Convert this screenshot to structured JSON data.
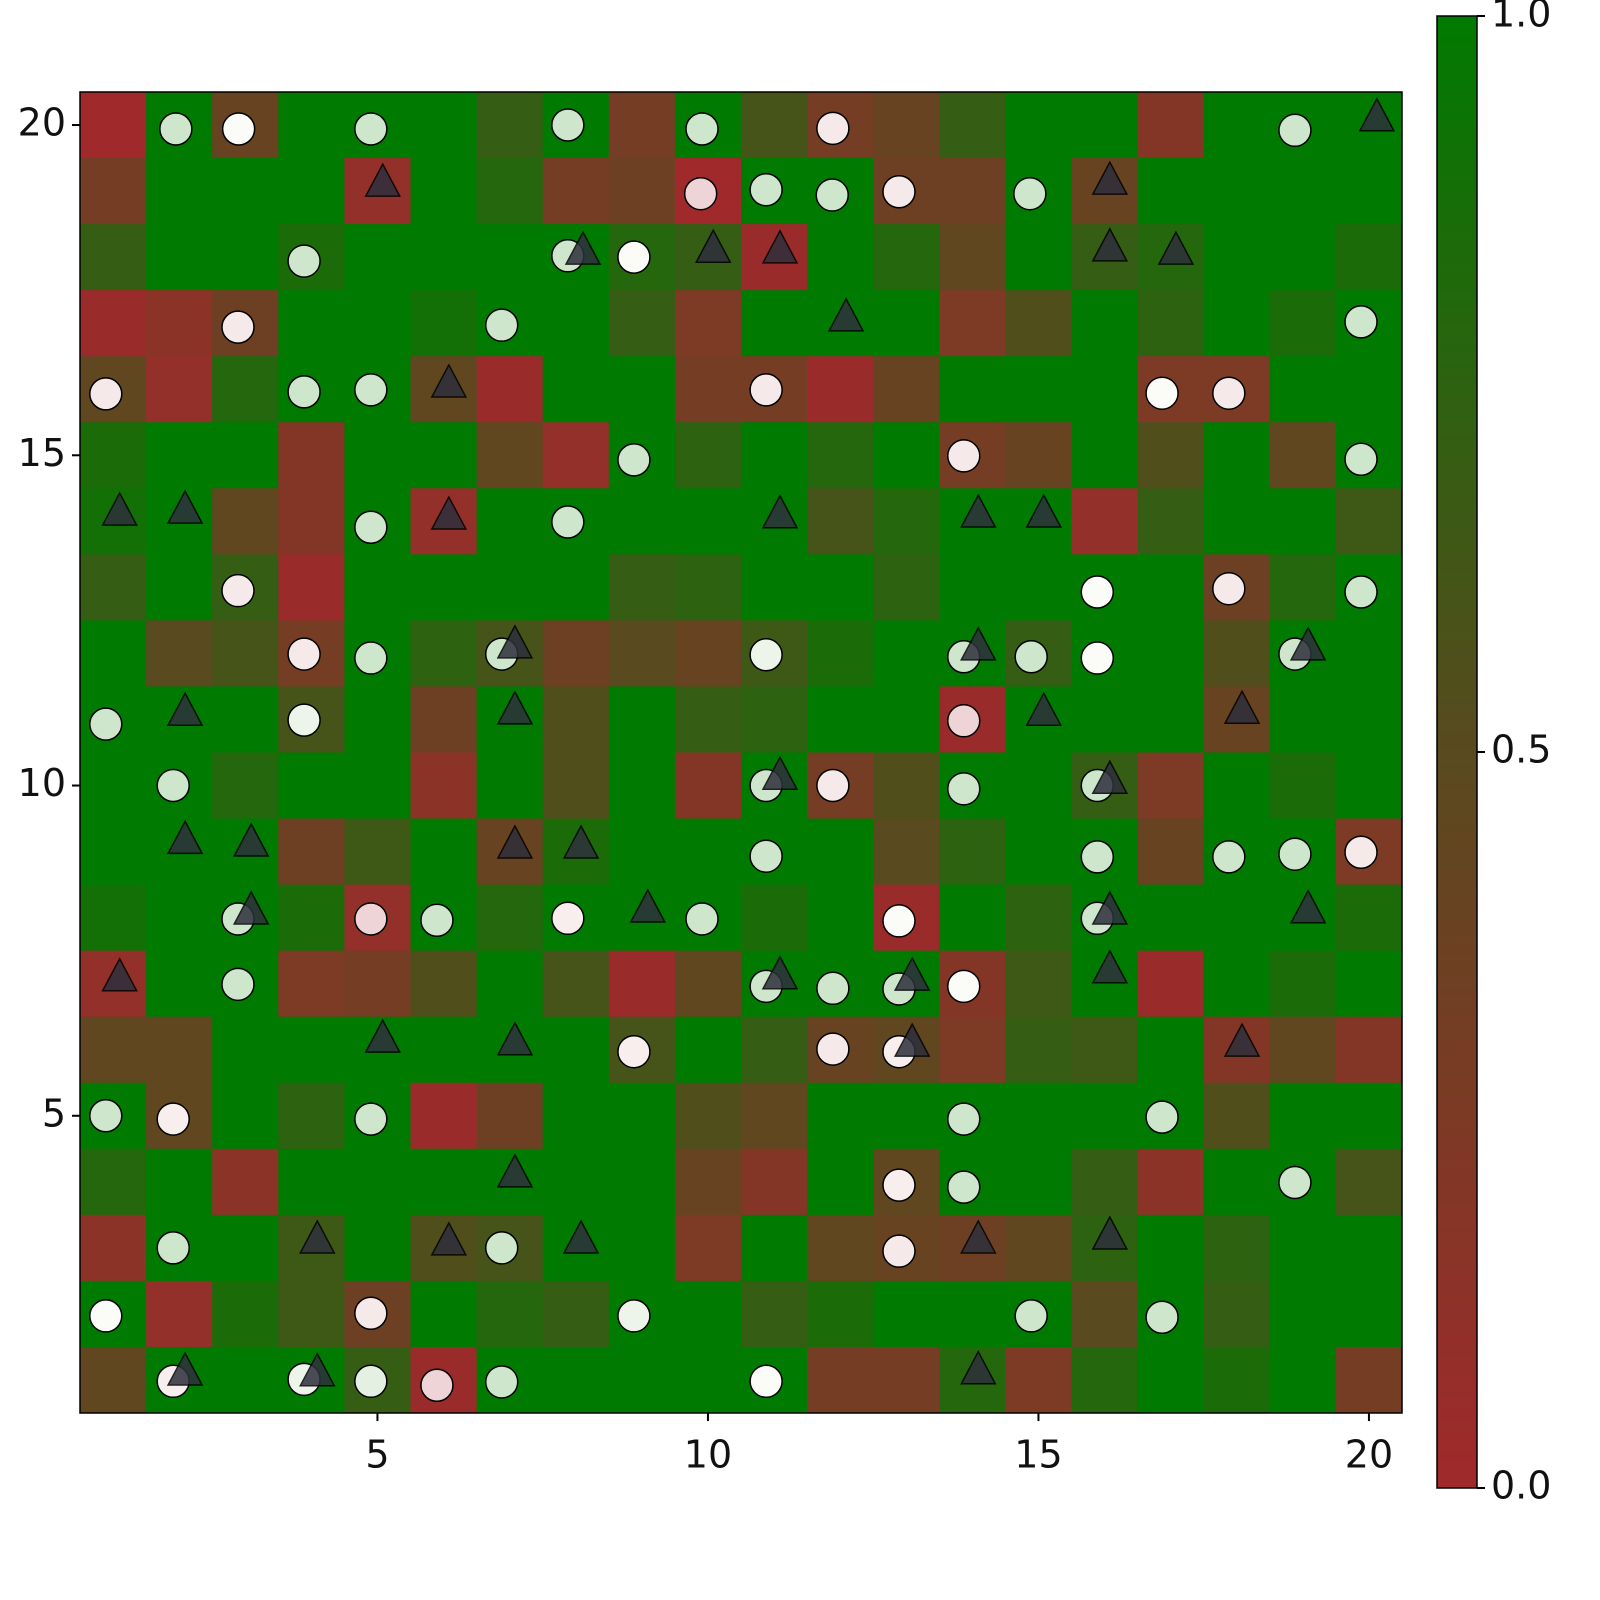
{
  "chart_data": {
    "type": "heatmap",
    "x": [
      1,
      2,
      3,
      4,
      5,
      6,
      7,
      8,
      9,
      10,
      11,
      12,
      13,
      14,
      15,
      16,
      17,
      18,
      19,
      20
    ],
    "y": [
      20,
      19,
      18,
      17,
      16,
      15,
      14,
      13,
      12,
      11,
      10,
      9,
      8,
      7,
      6,
      5,
      4,
      3,
      2,
      1
    ],
    "z": [
      [
        0,
        1,
        0.4,
        1,
        1,
        1,
        0.7,
        1,
        0.3,
        1,
        0.6,
        0.3,
        0.4,
        0.7,
        1,
        1,
        0.2,
        1,
        1,
        1
      ],
      [
        0.3,
        1,
        1,
        1,
        0.1,
        1,
        0.8,
        0.3,
        0.35,
        0,
        1,
        1,
        0.35,
        0.35,
        1,
        0.4,
        1,
        1,
        1,
        1
      ],
      [
        0.7,
        1,
        1,
        0.85,
        1,
        1,
        1,
        1,
        0.8,
        0.7,
        0.05,
        1,
        0.8,
        0.45,
        1,
        0.7,
        0.8,
        1,
        1,
        0.85
      ],
      [
        0.05,
        0.15,
        0.35,
        1,
        1,
        0.9,
        1,
        1,
        0.7,
        0.25,
        1,
        1,
        1,
        0.25,
        0.55,
        1,
        0.75,
        1,
        0.85,
        1
      ],
      [
        0.45,
        0.1,
        0.8,
        1,
        1,
        0.45,
        0.05,
        1,
        1,
        0.3,
        0.3,
        0.05,
        0.4,
        1,
        1,
        1,
        0.25,
        0.25,
        1,
        1
      ],
      [
        0.85,
        1,
        1,
        0.2,
        1,
        1,
        0.45,
        0.1,
        1,
        0.75,
        1,
        0.8,
        1,
        0.3,
        0.4,
        1,
        0.55,
        1,
        0.45,
        1
      ],
      [
        0.9,
        1,
        0.45,
        0.2,
        1,
        0.1,
        1,
        1,
        1,
        1,
        1,
        0.6,
        0.8,
        1,
        1,
        0.1,
        0.7,
        1,
        1,
        0.65
      ],
      [
        0.7,
        1,
        0.7,
        0.05,
        1,
        1,
        1,
        1,
        0.7,
        0.75,
        1,
        1,
        0.75,
        1,
        1,
        1,
        1,
        0.35,
        0.8,
        1
      ],
      [
        1,
        0.5,
        0.6,
        0.3,
        1,
        0.75,
        0.6,
        0.35,
        0.5,
        0.4,
        0.65,
        0.85,
        1,
        1,
        0.7,
        1,
        1,
        0.55,
        1,
        1
      ],
      [
        1,
        1,
        1,
        0.6,
        1,
        0.35,
        1,
        0.55,
        1,
        0.7,
        0.75,
        1,
        1,
        0.05,
        1,
        1,
        1,
        0.4,
        1,
        1
      ],
      [
        1,
        1,
        0.8,
        1,
        1,
        0.15,
        1,
        0.55,
        1,
        0.2,
        1,
        0.3,
        0.55,
        1,
        1,
        0.7,
        0.25,
        1,
        0.85,
        1
      ],
      [
        1,
        1,
        1,
        0.35,
        0.65,
        1,
        0.4,
        0.85,
        1,
        1,
        1,
        1,
        0.5,
        0.75,
        1,
        1,
        0.4,
        1,
        1,
        0.25
      ],
      [
        0.9,
        1,
        1,
        0.85,
        0.1,
        1,
        0.8,
        1,
        1,
        1,
        0.85,
        1,
        0.05,
        1,
        0.75,
        1,
        1,
        1,
        1,
        0.85
      ],
      [
        0.1,
        1,
        1,
        0.25,
        0.3,
        0.55,
        1,
        0.6,
        0.05,
        0.45,
        1,
        1,
        1,
        0.2,
        0.65,
        1,
        0.05,
        1,
        0.85,
        1
      ],
      [
        0.45,
        0.45,
        1,
        1,
        1,
        1,
        1,
        1,
        0.6,
        1,
        0.7,
        0.4,
        0.45,
        0.25,
        0.7,
        0.65,
        1,
        0.2,
        0.45,
        0.2
      ],
      [
        1,
        0.45,
        1,
        0.75,
        1,
        0.05,
        0.35,
        1,
        1,
        0.55,
        0.45,
        1,
        1,
        1,
        1,
        1,
        1,
        0.55,
        1,
        1
      ],
      [
        0.8,
        1,
        0.15,
        1,
        1,
        1,
        1,
        1,
        1,
        0.4,
        0.2,
        1,
        0.45,
        1,
        1,
        0.7,
        0.15,
        1,
        1,
        0.6
      ],
      [
        0.15,
        1,
        1,
        0.65,
        1,
        0.55,
        0.6,
        1,
        1,
        0.25,
        1,
        0.45,
        0.4,
        0.35,
        0.45,
        0.75,
        1,
        0.75,
        1,
        1
      ],
      [
        1,
        0.1,
        0.85,
        0.65,
        0.35,
        1,
        0.8,
        0.7,
        1,
        1,
        0.7,
        0.85,
        1,
        1,
        1,
        0.5,
        1,
        0.7,
        1,
        1
      ],
      [
        0.45,
        1,
        1,
        1,
        0.7,
        0.05,
        1,
        1,
        1,
        1,
        1,
        0.3,
        0.3,
        0.8,
        0.25,
        0.8,
        1,
        0.85,
        1,
        0.3
      ]
    ],
    "colormap": [
      [
        0,
        "#a0292b"
      ],
      [
        0.5,
        "#594a1f"
      ],
      [
        1,
        "#007a00"
      ]
    ],
    "circles": {
      "x": [
        1.95,
        2.9,
        4.9,
        7.88,
        9.91,
        11.89,
        18.88,
        9.89,
        10.88,
        11.88,
        12.89,
        14.87,
        3.89,
        7.88,
        8.88,
        2.89,
        6.88,
        19.88,
        0.89,
        3.89,
        4.9,
        10.88,
        16.87,
        17.88,
        8.88,
        13.87,
        19.88,
        4.9,
        7.88,
        2.89,
        15.89,
        17.88,
        19.88,
        3.89,
        4.9,
        6.88,
        10.88,
        13.87,
        14.89,
        15.89,
        18.88,
        0.89,
        3.89,
        13.87,
        1.91,
        10.88,
        11.89,
        13.87,
        15.89,
        10.88,
        15.89,
        17.88,
        18.88,
        19.88,
        2.89,
        4.9,
        5.9,
        7.88,
        9.91,
        12.89,
        15.89,
        2.89,
        10.88,
        11.89,
        12.89,
        13.87,
        8.88,
        11.89,
        12.89,
        0.89,
        1.91,
        4.9,
        13.87,
        16.87,
        12.89,
        13.87,
        18.88,
        1.91,
        6.88,
        12.89,
        0.89,
        4.9,
        8.88,
        14.89,
        16.87,
        1.91,
        3.89,
        4.9,
        5.9,
        6.88,
        10.88
      ],
      "y": [
        19.94,
        19.94,
        19.94,
        20.0,
        19.94,
        19.95,
        19.92,
        18.96,
        19.02,
        18.94,
        18.99,
        18.96,
        17.94,
        18.02,
        18.0,
        16.94,
        16.97,
        17.02,
        15.93,
        15.96,
        15.99,
        15.99,
        15.94,
        15.94,
        14.93,
        14.99,
        14.94,
        13.91,
        13.99,
        12.95,
        12.93,
        12.98,
        12.93,
        11.99,
        11.93,
        11.99,
        11.98,
        11.95,
        11.95,
        11.93,
        11.99,
        10.93,
        10.99,
        10.98,
        10.0,
        10.0,
        10.0,
        9.95,
        10.0,
        8.93,
        8.92,
        8.92,
        8.96,
        8.99,
        7.98,
        7.98,
        7.96,
        7.99,
        7.98,
        7.95,
        7.99,
        6.99,
        6.96,
        6.93,
        6.92,
        6.96,
        5.97,
        6.01,
        5.97,
        5.0,
        4.95,
        4.95,
        4.95,
        4.98,
        3.95,
        3.92,
        3.99,
        3.0,
        3.0,
        2.95,
        1.97,
        2.01,
        1.97,
        1.97,
        1.95,
        0.98,
        1.01,
        0.98,
        0.92,
        0.97,
        0.98
      ],
      "values": [
        1,
        0.5,
        1,
        1,
        1,
        0.3,
        1,
        0.05,
        1,
        1,
        0.3,
        1,
        1,
        1,
        0.5,
        0.3,
        1,
        1,
        0.3,
        1,
        1,
        0.3,
        0.5,
        0.3,
        1,
        0.3,
        1,
        1,
        1,
        0.3,
        0.5,
        0.3,
        1,
        0.3,
        1,
        1,
        0.65,
        1,
        1,
        0.5,
        1,
        1,
        0.65,
        0.05,
        1,
        1,
        0.3,
        1,
        1,
        1,
        1,
        1,
        1,
        0.3,
        1,
        0.05,
        1,
        0.35,
        1,
        0.5,
        1,
        1,
        1,
        1,
        1,
        0.5,
        0.35,
        0.3,
        0.35,
        1,
        0.35,
        1,
        1,
        1,
        0.35,
        1,
        1,
        1,
        1,
        0.3,
        0.5,
        0.3,
        0.65,
        1,
        1,
        0.35,
        0.65,
        0.75,
        0.05,
        1,
        0.5
      ],
      "colormap": [
        [
          0,
          "#ecd0d2"
        ],
        [
          0.5,
          "#fbfbf8"
        ],
        [
          1,
          "#cde6cc"
        ]
      ]
    },
    "triangles": {
      "x": [
        20.12,
        5.08,
        16.08,
        8.11,
        10.08,
        11.09,
        16.08,
        17.08,
        12.09,
        6.08,
        1.1,
        2.09,
        6.08,
        11.09,
        14.09,
        15.08,
        7.08,
        14.09,
        19.08,
        2.09,
        7.08,
        15.08,
        18.08,
        11.09,
        16.08,
        2.09,
        3.09,
        7.08,
        8.08,
        3.09,
        9.09,
        16.08,
        19.08,
        1.1,
        11.09,
        13.09,
        16.08,
        5.08,
        7.08,
        13.09,
        18.08,
        7.08,
        4.09,
        6.08,
        8.08,
        14.09,
        16.08,
        2.09,
        4.09,
        14.09
      ],
      "y": [
        20.11,
        19.12,
        19.15,
        18.09,
        18.12,
        18.11,
        18.14,
        18.09,
        17.08,
        16.08,
        14.14,
        14.17,
        14.08,
        14.1,
        14.11,
        14.11,
        12.13,
        12.1,
        12.1,
        11.11,
        11.13,
        11.11,
        11.14,
        10.14,
        10.08,
        9.17,
        9.13,
        9.1,
        9.1,
        8.1,
        8.13,
        8.1,
        8.12,
        7.09,
        7.12,
        7.1,
        7.21,
        6.16,
        6.12,
        6.1,
        6.1,
        4.12,
        3.12,
        3.09,
        3.12,
        3.12,
        3.18,
        1.12,
        1.11,
        1.14
      ],
      "color": "#2e2f3c"
    },
    "xlim": [
      0.5,
      20.5
    ],
    "ylim": [
      0.5,
      20.5
    ],
    "xticks": [
      5,
      10,
      15,
      20
    ],
    "yticks": [
      5,
      10,
      15,
      20
    ],
    "colorbar": {
      "lim": [
        0,
        1
      ],
      "ticks": [
        {
          "value": 0,
          "label": "0.0"
        },
        0.5,
        {
          "value": 1,
          "label": "1.0"
        }
      ]
    }
  }
}
